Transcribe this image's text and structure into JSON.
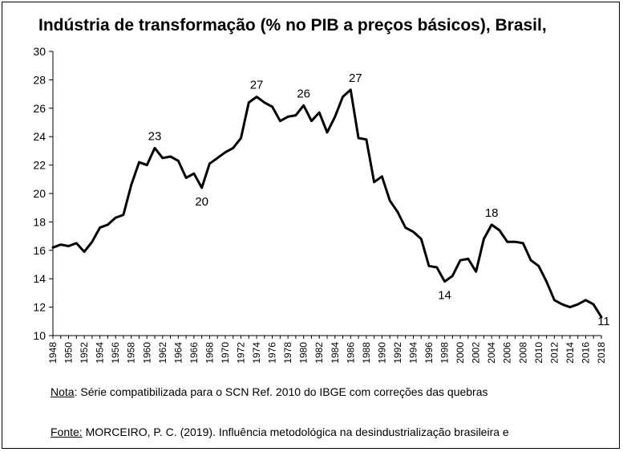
{
  "chart_data": {
    "type": "line",
    "title": "Indústria de transformação (% no PIB a preços básicos), Brasil,",
    "xlabel": "",
    "ylabel": "",
    "ylim": [
      10,
      30
    ],
    "yticks": [
      10,
      12,
      14,
      16,
      18,
      20,
      22,
      24,
      26,
      28,
      30
    ],
    "xlim": [
      1948,
      2018
    ],
    "xticks": [
      1948,
      1950,
      1952,
      1954,
      1956,
      1958,
      1960,
      1962,
      1964,
      1966,
      1968,
      1970,
      1972,
      1974,
      1976,
      1978,
      1980,
      1982,
      1984,
      1986,
      1988,
      1990,
      1992,
      1994,
      1996,
      1998,
      2000,
      2002,
      2004,
      2006,
      2008,
      2010,
      2012,
      2014,
      2016,
      2018
    ],
    "grid": false,
    "line_color": "#000000",
    "series": [
      {
        "x": [
          1948,
          1949,
          1950,
          1951,
          1952,
          1953,
          1954,
          1955,
          1956,
          1957,
          1958,
          1959,
          1960,
          1961,
          1962,
          1963,
          1964,
          1965,
          1966,
          1967,
          1968,
          1969,
          1970,
          1971,
          1972,
          1973,
          1974,
          1975,
          1976,
          1977,
          1978,
          1979,
          1980,
          1981,
          1982,
          1983,
          1984,
          1985,
          1986,
          1987,
          1988,
          1989,
          1990,
          1991,
          1992,
          1993,
          1994,
          1995,
          1996,
          1997,
          1998,
          1999,
          2000,
          2001,
          2002,
          2003,
          2004,
          2005,
          2006,
          2007,
          2008,
          2009,
          2010,
          2011,
          2012,
          2013,
          2014,
          2015,
          2016,
          2017,
          2018
        ],
        "values": [
          16.2,
          16.4,
          16.3,
          16.5,
          15.9,
          16.6,
          17.6,
          17.8,
          18.3,
          18.5,
          20.6,
          22.2,
          22.0,
          23.2,
          22.5,
          22.6,
          22.3,
          21.1,
          21.4,
          20.4,
          22.1,
          22.5,
          22.9,
          23.2,
          23.9,
          26.4,
          26.8,
          26.4,
          26.1,
          25.1,
          25.4,
          25.5,
          26.2,
          25.1,
          25.7,
          24.3,
          25.4,
          26.8,
          27.3,
          23.9,
          23.8,
          20.8,
          21.2,
          19.5,
          18.7,
          17.6,
          17.3,
          16.8,
          14.9,
          14.8,
          13.8,
          14.2,
          15.3,
          15.4,
          14.5,
          16.8,
          17.8,
          17.4,
          16.6,
          16.6,
          16.5,
          15.3,
          14.9,
          13.8,
          12.5,
          12.2,
          12.0,
          12.2,
          12.5,
          12.2,
          11.3
        ]
      }
    ],
    "annotations": [
      {
        "x": 1961,
        "y": 23.2,
        "text": "23"
      },
      {
        "x": 1967,
        "y": 20.4,
        "text": "20"
      },
      {
        "x": 1974,
        "y": 26.8,
        "text": "27"
      },
      {
        "x": 1980,
        "y": 26.2,
        "text": "26"
      },
      {
        "x": 1986,
        "y": 27.3,
        "text": "27"
      },
      {
        "x": 1998,
        "y": 13.8,
        "text": "14"
      },
      {
        "x": 2004,
        "y": 17.8,
        "text": "18"
      },
      {
        "x": 2018,
        "y": 11.3,
        "text": "11"
      }
    ]
  },
  "footer": {
    "note_label": "Nota",
    "note_text": ": Série compatibilizada para o SCN Ref. 2010 do IBGE com correções das quebras",
    "source_label": "Fonte:",
    "source_text": " MORCEIRO, P. C. (2019). Influência metodológica na desindustrialização brasileira e"
  }
}
